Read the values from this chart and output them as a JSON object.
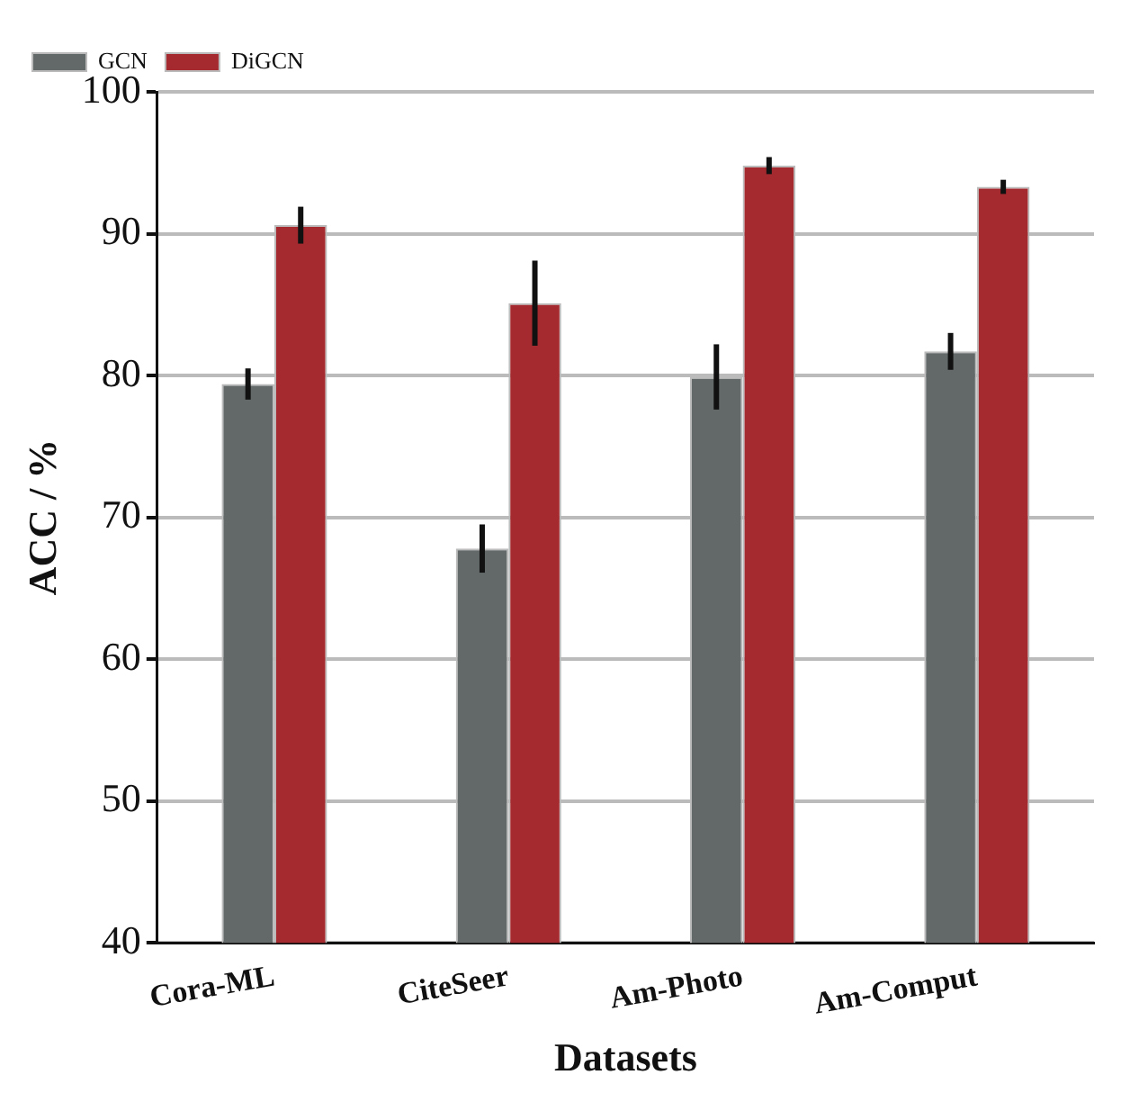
{
  "chart_data": {
    "type": "bar",
    "xlabel": "Datasets",
    "ylabel": "ACC / %",
    "categories": [
      "Cora-ML",
      "CiteSeer",
      "Am-Photo",
      "Am-Comput"
    ],
    "series": [
      {
        "name": "GCN",
        "color": "#636969",
        "values": [
          79.4,
          67.8,
          79.9,
          81.7
        ],
        "errors": [
          1.1,
          1.7,
          2.3,
          1.3
        ]
      },
      {
        "name": "DiGCN",
        "color": "#a52a2f",
        "values": [
          90.6,
          85.1,
          94.8,
          93.3
        ],
        "errors": [
          1.3,
          3.0,
          0.6,
          0.5
        ]
      }
    ],
    "ylim": [
      40,
      100
    ],
    "yticks": [
      40,
      50,
      60,
      70,
      80,
      90,
      100
    ],
    "grid": "y",
    "legend": "top left"
  }
}
